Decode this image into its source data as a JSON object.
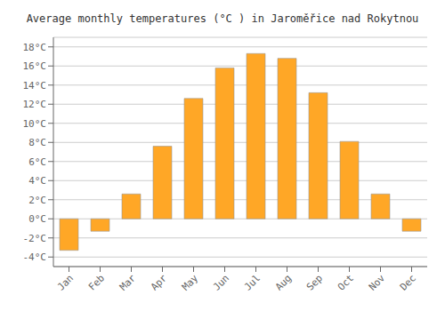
{
  "chart_data": {
    "type": "bar",
    "title": "Average monthly temperatures (°C ) in Jaroměřice nad Rokytnou",
    "categories": [
      "Jan",
      "Feb",
      "Mar",
      "Apr",
      "May",
      "Jun",
      "Jul",
      "Aug",
      "Sep",
      "Oct",
      "Nov",
      "Dec"
    ],
    "values": [
      -3.3,
      -1.3,
      2.6,
      7.6,
      12.6,
      15.8,
      17.3,
      16.8,
      13.2,
      8.1,
      2.6,
      -1.3
    ],
    "color": "#FFA726",
    "ylim": [
      -5,
      19
    ],
    "yticks": [
      {
        "value": -4,
        "label": "-4°C"
      },
      {
        "value": -2,
        "label": "-2°C"
      },
      {
        "value": 0,
        "label": "0°C"
      },
      {
        "value": 2,
        "label": "2°C"
      },
      {
        "value": 4,
        "label": "4°C"
      },
      {
        "value": 6,
        "label": "6°C"
      },
      {
        "value": 8,
        "label": "8°C"
      },
      {
        "value": 10,
        "label": "10°C"
      },
      {
        "value": 12,
        "label": "12°C"
      },
      {
        "value": 14,
        "label": "14°C"
      },
      {
        "value": 16,
        "label": "16°C"
      },
      {
        "value": 18,
        "label": "18°C"
      }
    ],
    "grid": true
  }
}
